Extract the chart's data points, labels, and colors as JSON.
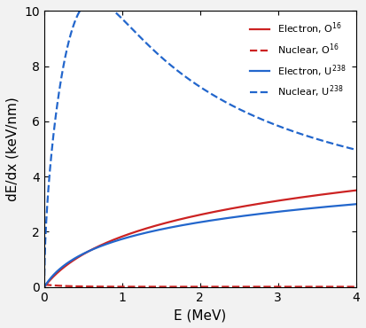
{
  "xlabel": "E (MeV)",
  "ylabel": "dE/dx (keV/nm)",
  "xlim": [
    0,
    4
  ],
  "ylim": [
    0,
    10
  ],
  "xticks": [
    0,
    1,
    2,
    3,
    4
  ],
  "yticks": [
    0,
    2,
    4,
    6,
    8,
    10
  ],
  "legend_entries": [
    {
      "label": "Electron, O$^{16}$",
      "color": "#cc2222",
      "linestyle": "solid"
    },
    {
      "label": "Nuclear, O$^{16}$",
      "color": "#cc2222",
      "linestyle": "dashed"
    },
    {
      "label": "Electron, U$^{238}$",
      "color": "#2266cc",
      "linestyle": "solid"
    },
    {
      "label": "Nuclear, U$^{238}$",
      "color": "#2266cc",
      "linestyle": "dashed"
    }
  ],
  "background_color": "#f2f2f2",
  "plot_bg_color": "#ffffff",
  "figsize": [
    4.13,
    3.7
  ],
  "dpi": 100
}
